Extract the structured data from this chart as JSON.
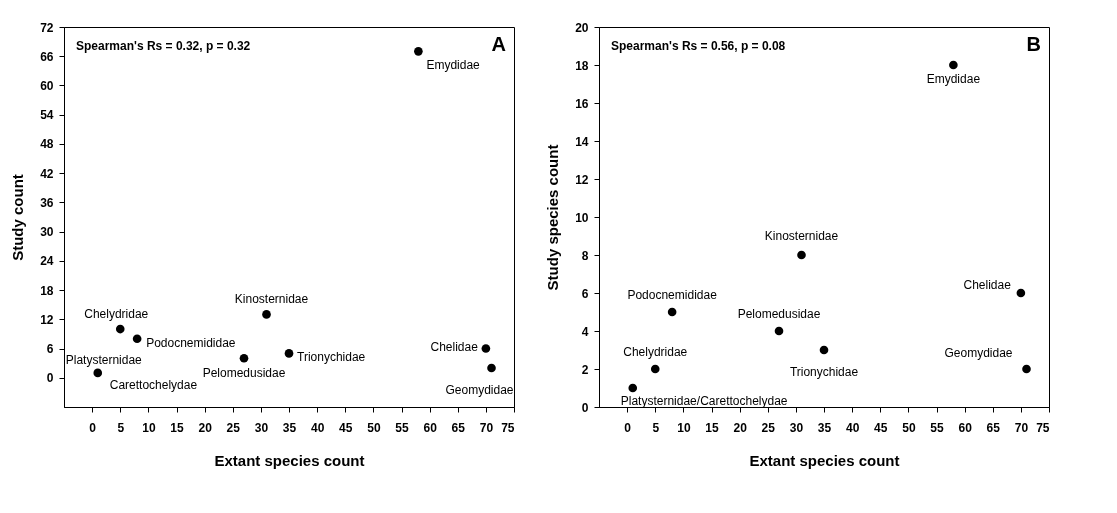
{
  "chart_data": [
    {
      "type": "scatter",
      "xlabel": "Extant species count",
      "ylabel": "Study count",
      "x": [
        1,
        5,
        8,
        27,
        31,
        35,
        58,
        70,
        71
      ],
      "values": [
        1,
        10,
        8,
        4,
        13,
        5,
        67,
        6,
        2
      ],
      "color": "#000000",
      "marker": "circle",
      "grid": false,
      "xlim": [
        -5,
        75
      ],
      "xticks": [
        0,
        5,
        10,
        15,
        20,
        25,
        30,
        35,
        40,
        45,
        50,
        55,
        60,
        65,
        70,
        75
      ],
      "ylim": [
        -6,
        72
      ],
      "yticks": [
        0,
        6,
        12,
        18,
        24,
        30,
        36,
        42,
        48,
        54,
        60,
        66,
        72
      ],
      "annotations": [
        "Spearman's Rs = 0.32, p = 0.32",
        "A",
        {
          "text": "Platysternidae",
          "x": 1,
          "y": 1
        },
        {
          "text": "Carettochelydae",
          "x": 1,
          "y": 1
        },
        {
          "text": "Chelydridae",
          "x": 5,
          "y": 10
        },
        {
          "text": "Podocnemididae",
          "x": 8,
          "y": 8
        },
        {
          "text": "Pelomedusidae",
          "x": 27,
          "y": 4
        },
        {
          "text": "Kinosternidae",
          "x": 31,
          "y": 13
        },
        {
          "text": "Trionychidae",
          "x": 35,
          "y": 5
        },
        {
          "text": "Emydidae",
          "x": 58,
          "y": 67
        },
        {
          "text": "Chelidae",
          "x": 70,
          "y": 6
        },
        {
          "text": "Geomydidae",
          "x": 71,
          "y": 2
        }
      ]
    },
    {
      "type": "scatter",
      "xlabel": "Extant species count",
      "ylabel": "Study species count",
      "x": [
        1,
        5,
        8,
        27,
        31,
        35,
        58,
        70,
        71
      ],
      "values": [
        1,
        2,
        5,
        4,
        8,
        3,
        18,
        6,
        2
      ],
      "color": "#000000",
      "marker": "circle",
      "grid": false,
      "xlim": [
        -5,
        75
      ],
      "xticks": [
        0,
        5,
        10,
        15,
        20,
        25,
        30,
        35,
        40,
        45,
        50,
        55,
        60,
        65,
        70,
        75
      ],
      "ylim": [
        0,
        20
      ],
      "yticks": [
        0,
        2,
        4,
        6,
        8,
        10,
        12,
        14,
        16,
        18,
        20
      ],
      "annotations": [
        "Spearman's Rs = 0.56, p = 0.08",
        "B",
        {
          "text": "Platysternidae/Carettochelydae",
          "x": 1,
          "y": 1
        },
        {
          "text": "Chelydridae",
          "x": 5,
          "y": 2
        },
        {
          "text": "Podocnemididae",
          "x": 8,
          "y": 5
        },
        {
          "text": "Pelomedusidae",
          "x": 27,
          "y": 4
        },
        {
          "text": "Kinosternidae",
          "x": 31,
          "y": 8
        },
        {
          "text": "Trionychidae",
          "x": 35,
          "y": 3
        },
        {
          "text": "Emydidae",
          "x": 58,
          "y": 18
        },
        {
          "text": "Chelidae",
          "x": 70,
          "y": 6
        },
        {
          "text": "Geomydidae",
          "x": 71,
          "y": 2
        }
      ]
    }
  ]
}
